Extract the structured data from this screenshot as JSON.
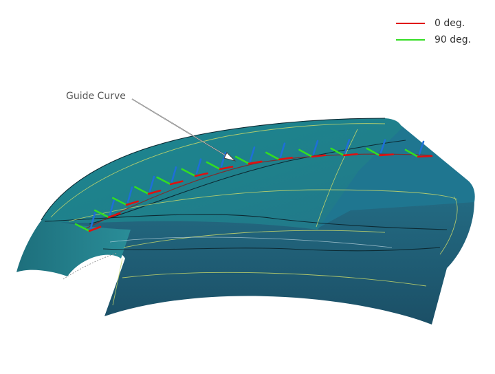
{
  "legend": {
    "items": [
      {
        "label": "0 deg.",
        "color": "#e01010"
      },
      {
        "label": "90 deg.",
        "color": "#33dd22"
      }
    ]
  },
  "annotation": {
    "label": "Guide Curve"
  },
  "colors": {
    "surface_top": "#1a7e88",
    "surface_top_light": "#2a96a0",
    "surface_side": "#215d76",
    "surface_side_dark": "#1b4f66",
    "trim_line": "#c8d86a",
    "edge_line": "#0c2a33",
    "axis_normal": "#1e6fd8"
  }
}
